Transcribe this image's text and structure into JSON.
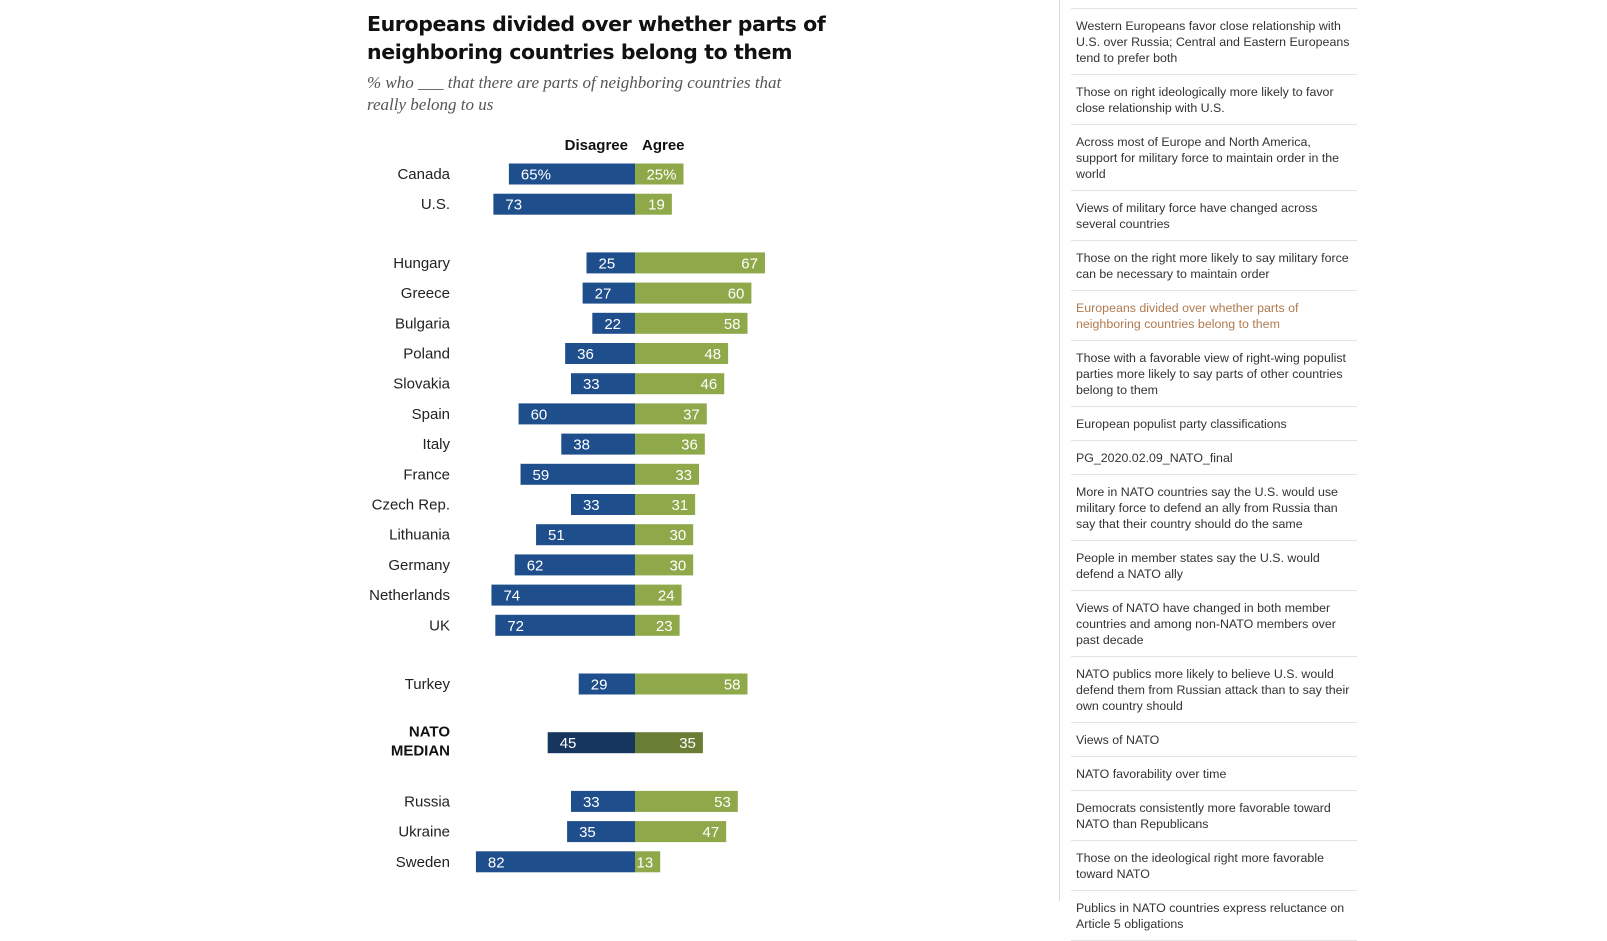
{
  "chart_data": {
    "type": "bar",
    "orientation": "horizontal-diverging",
    "title": "Europeans divided over whether parts of neighboring countries belong to them",
    "subtitle": "% who ___ that there are parts of neighboring countries that really belong to us",
    "series": [
      {
        "name": "Disagree",
        "color": "#1f4e8c",
        "median_color": "#16365f"
      },
      {
        "name": "Agree",
        "color": "#8fa84a",
        "median_color": "#6a7d35"
      }
    ],
    "groups": [
      [
        {
          "label": "Canada",
          "disagree": 65,
          "agree": 25,
          "disagree_label": "65%",
          "agree_label": "25%"
        },
        {
          "label": "U.S.",
          "disagree": 73,
          "agree": 19,
          "disagree_label": "73",
          "agree_label": "19"
        }
      ],
      [
        {
          "label": "Hungary",
          "disagree": 25,
          "agree": 67,
          "disagree_label": "25",
          "agree_label": "67"
        },
        {
          "label": "Greece",
          "disagree": 27,
          "agree": 60,
          "disagree_label": "27",
          "agree_label": "60"
        },
        {
          "label": "Bulgaria",
          "disagree": 22,
          "agree": 58,
          "disagree_label": "22",
          "agree_label": "58"
        },
        {
          "label": "Poland",
          "disagree": 36,
          "agree": 48,
          "disagree_label": "36",
          "agree_label": "48"
        },
        {
          "label": "Slovakia",
          "disagree": 33,
          "agree": 46,
          "disagree_label": "33",
          "agree_label": "46"
        },
        {
          "label": "Spain",
          "disagree": 60,
          "agree": 37,
          "disagree_label": "60",
          "agree_label": "37"
        },
        {
          "label": "Italy",
          "disagree": 38,
          "agree": 36,
          "disagree_label": "38",
          "agree_label": "36"
        },
        {
          "label": "France",
          "disagree": 59,
          "agree": 33,
          "disagree_label": "59",
          "agree_label": "33"
        },
        {
          "label": "Czech Rep.",
          "disagree": 33,
          "agree": 31,
          "disagree_label": "33",
          "agree_label": "31"
        },
        {
          "label": "Lithuania",
          "disagree": 51,
          "agree": 30,
          "disagree_label": "51",
          "agree_label": "30"
        },
        {
          "label": "Germany",
          "disagree": 62,
          "agree": 30,
          "disagree_label": "62",
          "agree_label": "30"
        },
        {
          "label": "Netherlands",
          "disagree": 74,
          "agree": 24,
          "disagree_label": "74",
          "agree_label": "24"
        },
        {
          "label": "UK",
          "disagree": 72,
          "agree": 23,
          "disagree_label": "72",
          "agree_label": "23"
        }
      ],
      [
        {
          "label": "Turkey",
          "disagree": 29,
          "agree": 58,
          "disagree_label": "29",
          "agree_label": "58"
        }
      ],
      [
        {
          "label": "NATO MEDIAN",
          "label_lines": [
            "NATO",
            "MEDIAN"
          ],
          "disagree": 45,
          "agree": 35,
          "disagree_label": "45",
          "agree_label": "35",
          "median": true
        }
      ],
      [
        {
          "label": "Russia",
          "disagree": 33,
          "agree": 53,
          "disagree_label": "33",
          "agree_label": "53"
        },
        {
          "label": "Ukraine",
          "disagree": 35,
          "agree": 47,
          "disagree_label": "35",
          "agree_label": "47"
        },
        {
          "label": "Sweden",
          "disagree": 82,
          "agree": 13,
          "disagree_label": "82",
          "agree_label": "13"
        }
      ]
    ]
  },
  "sidebar": {
    "items": [
      {
        "text": "Western Europeans favor close relationship with U.S. over Russia; Central and Eastern Europeans tend to prefer both"
      },
      {
        "text": "Those on right ideologically more likely to favor close relationship with U.S."
      },
      {
        "text": "Across most of Europe and North America, support for military force to maintain order in the world"
      },
      {
        "text": "Views of military force have changed across several countries"
      },
      {
        "text": "Those on the right more likely to say military force can be necessary to maintain order"
      },
      {
        "text": "Europeans divided over whether parts of neighboring countries belong to them",
        "active": true
      },
      {
        "text": "Those with a favorable view of right-wing populist parties more likely to say parts of other countries belong to them"
      },
      {
        "text": "European populist party classifications"
      },
      {
        "text": "PG_2020.02.09_NATO_final"
      },
      {
        "text": "More in NATO countries say the U.S. would use military force to defend an ally from Russia than say that their country should do the same"
      },
      {
        "text": "People in member states say the U.S. would defend a NATO ally"
      },
      {
        "text": "Views of NATO have changed in both member countries and among non-NATO members over past decade"
      },
      {
        "text": "NATO publics more likely to believe U.S. would defend them from Russian attack than to say their own country should"
      },
      {
        "text": "Views of NATO"
      },
      {
        "text": "NATO favorability over time"
      },
      {
        "text": "Democrats consistently more favorable toward NATO than Republicans"
      },
      {
        "text": "Those on the ideological right more favorable toward NATO"
      },
      {
        "text": "Publics in NATO countries express reluctance on Article 5 obligations"
      }
    ]
  }
}
